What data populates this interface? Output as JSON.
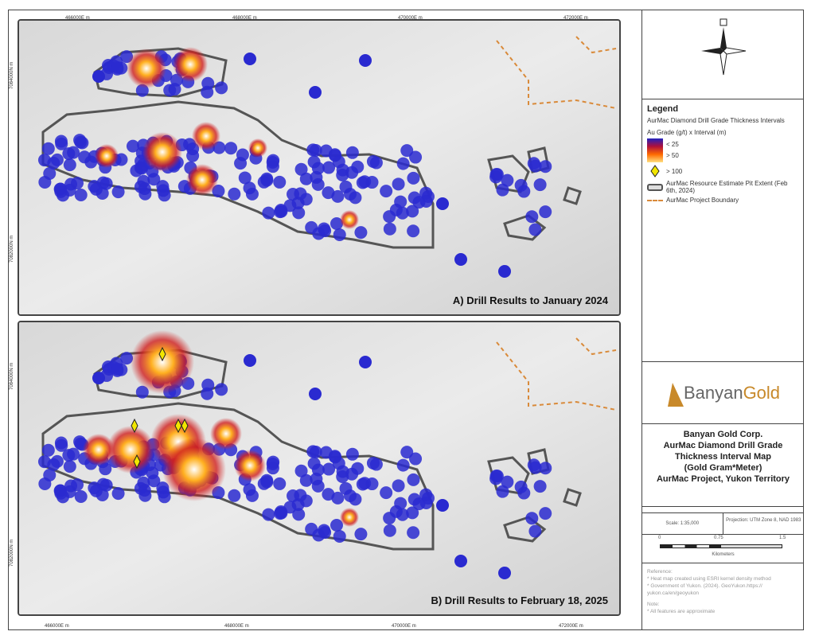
{
  "axes": {
    "eastings": [
      "466000E m",
      "468000E m",
      "470000E m",
      "472000E m"
    ],
    "northings": [
      "7084000N m",
      "7082000N m"
    ]
  },
  "panels": [
    {
      "title": "A) Drill Results to January 2024"
    },
    {
      "title": "B) Drill Results to February 18, 2025"
    }
  ],
  "legend": {
    "heading": "Legend",
    "layer": "AurMac Diamond Drill Grade Thickness Intervals",
    "field": "Au Grade (g/t)  x Interval (m)",
    "ramp_low": "< 25",
    "ramp_high": "> 50",
    "diamond": "> 100",
    "pit": "AurMac Resource Estimate Pit Extent (Feb 6th, 2024)",
    "boundary": "AurMac Project Boundary"
  },
  "colors": {
    "drill": "#2a2ad0",
    "heat_hot": "#ffffff",
    "heat_mid": "#ff8a00",
    "heat_low": "#b0103a",
    "pit": "#555555",
    "boundary": "#d98a3a",
    "diamond": "#f2e600",
    "brand_gold": "#c8892a",
    "brand_gray": "#666666"
  },
  "logo": {
    "part1": "Banyan",
    "part2": "Gold"
  },
  "title_block": {
    "lines": [
      "Banyan Gold Corp.",
      "AurMac Diamond Drill Grade",
      "Thickness Interval Map",
      "(Gold Gram*Meter)",
      "AurMac Project, Yukon Territory"
    ]
  },
  "scale": {
    "text": "Scale: 1:35,000",
    "projection": "Projection: UTM Zone 8, NAD 1983",
    "ticks": [
      "0",
      "0.75",
      "1.5"
    ],
    "unit": "Kilometers"
  },
  "reference": {
    "heading": "Reference:",
    "items": [
      "* Heat map created using ESRI kernel density method",
      "* Government of Yukon. (2024).  GeoYukon.https:// yukon.ca/en/geoyukon"
    ],
    "note_heading": "Note:",
    "note": "* All features are approximate"
  },
  "icons": {
    "north": "north-arrow-icon",
    "diamond": "diamond-marker-icon"
  }
}
